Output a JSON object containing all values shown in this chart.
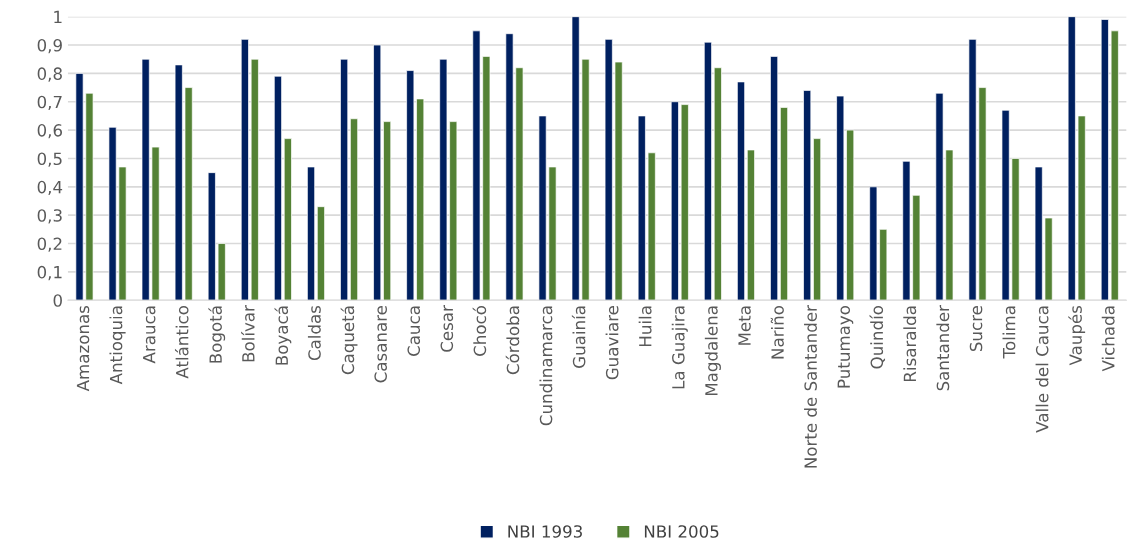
{
  "chart_data": {
    "type": "bar",
    "categories": [
      "Amazonas",
      "Antioquia",
      "Arauca",
      "Atlántico",
      "Bogotá",
      "Bolívar",
      "Boyacá",
      "Caldas",
      "Caquetá",
      "Casanare",
      "Cauca",
      "Cesar",
      "Chocó",
      "Córdoba",
      "Cundinamarca",
      "Guainía",
      "Guaviare",
      "Huila",
      "La Guajira",
      "Magdalena",
      "Meta",
      "Nariño",
      "Norte de Santander",
      "Putumayo",
      "Quindío",
      "Risaralda",
      "Santander",
      "Sucre",
      "Tolima",
      "Valle del Cauca",
      "Vaupés",
      "Vichada"
    ],
    "series": [
      {
        "name": "NBI 1993",
        "color": "#002060",
        "values": [
          0.8,
          0.61,
          0.85,
          0.83,
          0.45,
          0.92,
          0.79,
          0.47,
          0.85,
          0.9,
          0.81,
          0.85,
          0.95,
          0.94,
          0.65,
          1.0,
          0.92,
          0.65,
          0.7,
          0.91,
          0.77,
          0.86,
          0.74,
          0.72,
          0.4,
          0.49,
          0.73,
          0.92,
          0.67,
          0.47,
          1.0,
          0.99
        ]
      },
      {
        "name": "NBI 2005",
        "color": "#548235",
        "values": [
          0.73,
          0.47,
          0.54,
          0.75,
          0.2,
          0.85,
          0.57,
          0.33,
          0.64,
          0.63,
          0.71,
          0.63,
          0.86,
          0.82,
          0.47,
          0.85,
          0.84,
          0.52,
          0.69,
          0.82,
          0.53,
          0.68,
          0.57,
          0.6,
          0.25,
          0.37,
          0.53,
          0.75,
          0.5,
          0.29,
          0.65,
          0.95
        ]
      }
    ],
    "ylim": [
      0,
      1
    ],
    "yticks": [
      0,
      {
        "value": 0.1,
        "label": "0,1"
      },
      {
        "value": 0.2,
        "label": "0,2"
      },
      {
        "value": 0.3,
        "label": "0,3"
      },
      {
        "value": 0.4,
        "label": "0,4"
      },
      {
        "value": 0.5,
        "label": "0,5"
      },
      {
        "value": 0.6,
        "label": "0,6"
      },
      {
        "value": 0.7,
        "label": "0,7"
      },
      {
        "value": 0.8,
        "label": "0,8"
      },
      {
        "value": 0.9,
        "label": "0,9"
      },
      1
    ],
    "grid": "y",
    "legend": "bottom"
  }
}
